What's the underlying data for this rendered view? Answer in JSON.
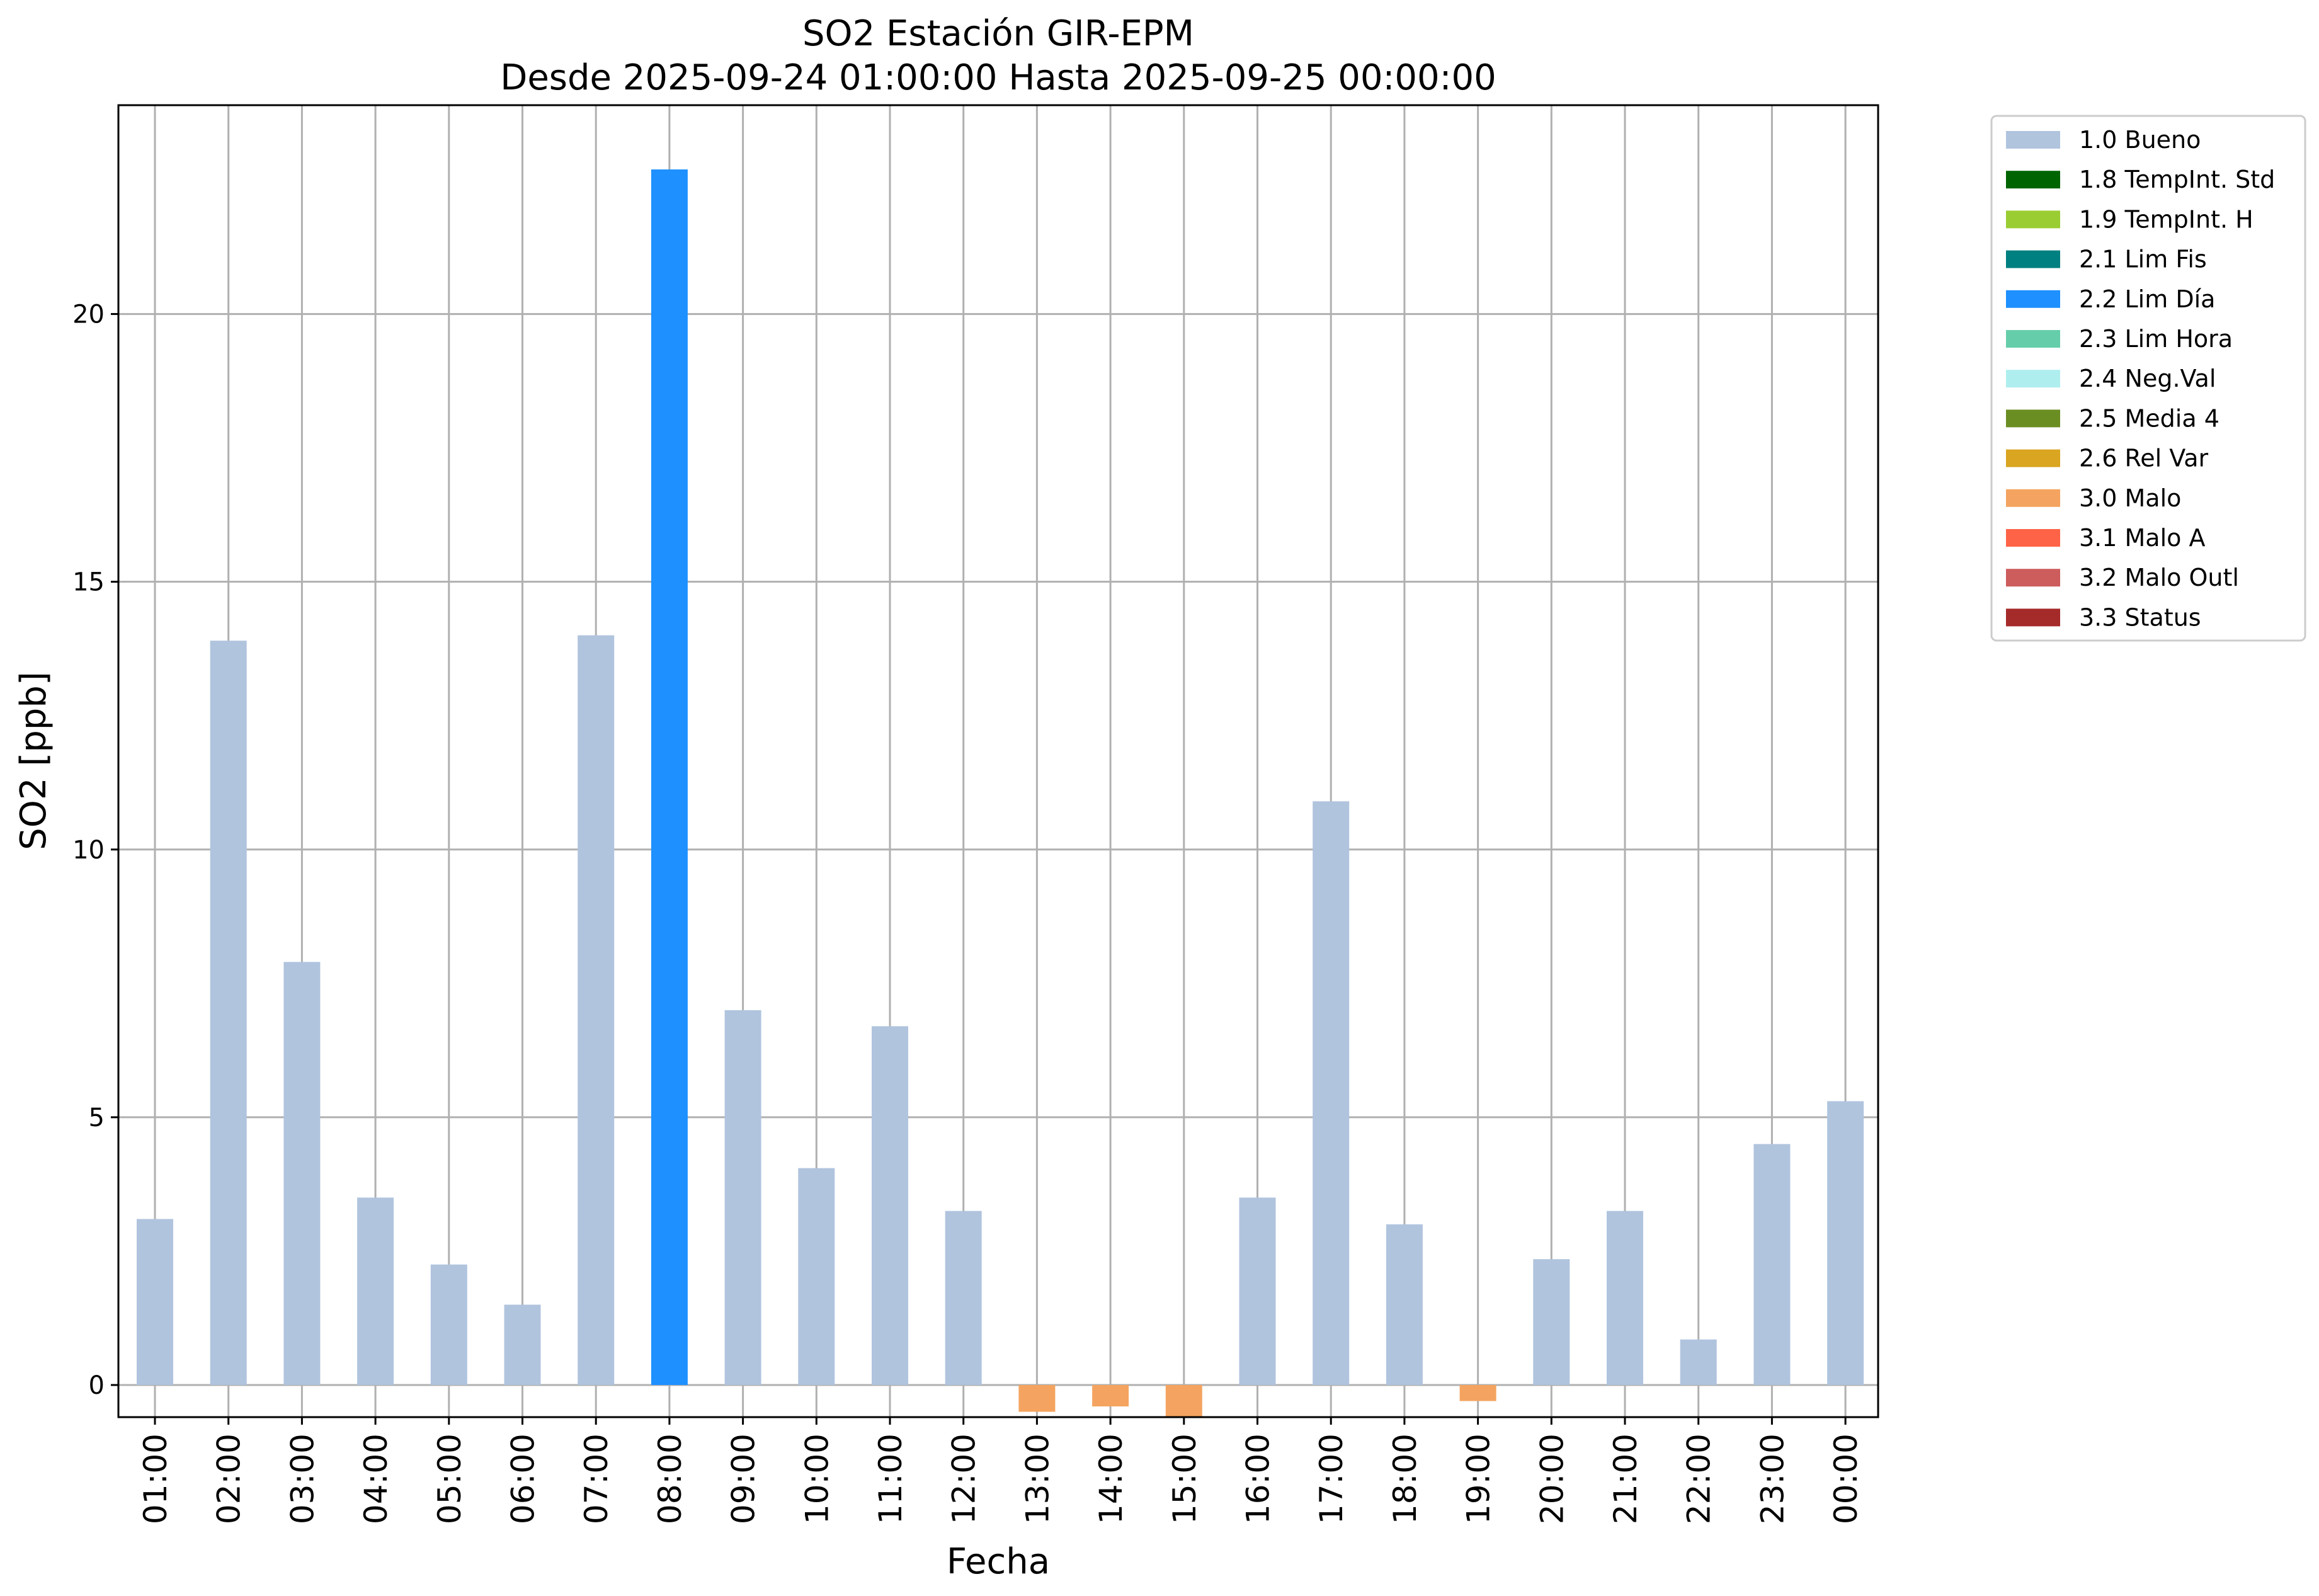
{
  "chart_data": {
    "type": "bar",
    "title": "SO2 Estación GIR-EPM",
    "subtitle": "Desde 2025-09-24 01:00:00 Hasta 2025-09-25 00:00:00",
    "xlabel": "Fecha",
    "ylabel": "SO2 [ppb]",
    "ylim": [
      -0.6,
      23.9
    ],
    "yticks": [
      0,
      5,
      10,
      15,
      20
    ],
    "grid": true,
    "legend_position": "outside-top-right",
    "categories": [
      "01:00",
      "02:00",
      "03:00",
      "04:00",
      "05:00",
      "06:00",
      "07:00",
      "08:00",
      "09:00",
      "10:00",
      "11:00",
      "12:00",
      "13:00",
      "14:00",
      "15:00",
      "16:00",
      "17:00",
      "18:00",
      "19:00",
      "20:00",
      "21:00",
      "22:00",
      "23:00",
      "00:00"
    ],
    "values": [
      3.1,
      13.9,
      7.9,
      3.5,
      2.25,
      1.5,
      14.0,
      22.7,
      7.0,
      4.05,
      6.7,
      3.25,
      -0.5,
      -0.4,
      -0.6,
      3.5,
      10.9,
      3.0,
      -0.3,
      2.35,
      3.25,
      0.85,
      4.5,
      5.3
    ],
    "flags": [
      "1.0 Bueno",
      "1.0 Bueno",
      "1.0 Bueno",
      "1.0 Bueno",
      "1.0 Bueno",
      "1.0 Bueno",
      "1.0 Bueno",
      "2.2 Lim Día",
      "1.0 Bueno",
      "1.0 Bueno",
      "1.0 Bueno",
      "1.0 Bueno",
      "3.0 Malo",
      "3.0 Malo",
      "3.0 Malo",
      "1.0 Bueno",
      "1.0 Bueno",
      "1.0 Bueno",
      "3.0 Malo",
      "1.0 Bueno",
      "1.0 Bueno",
      "1.0 Bueno",
      "1.0 Bueno",
      "1.0 Bueno"
    ],
    "legend": [
      {
        "label": "1.0 Bueno",
        "color": "#b0c4de"
      },
      {
        "label": "1.8 TempInt. Std",
        "color": "#006400"
      },
      {
        "label": "1.9 TempInt. H",
        "color": "#9acd32"
      },
      {
        "label": "2.1 Lim Fis",
        "color": "#008080"
      },
      {
        "label": "2.2 Lim Día",
        "color": "#1e90ff"
      },
      {
        "label": "2.3 Lim Hora",
        "color": "#66cdaa"
      },
      {
        "label": "2.4 Neg.Val",
        "color": "#afeeee"
      },
      {
        "label": "2.5 Media 4",
        "color": "#6b8e23"
      },
      {
        "label": "2.6 Rel Var",
        "color": "#daa520"
      },
      {
        "label": "3.0 Malo",
        "color": "#f4a460"
      },
      {
        "label": "3.1 Malo A",
        "color": "#ff6347"
      },
      {
        "label": "3.2 Malo Outl",
        "color": "#cd5c5c"
      },
      {
        "label": "3.3 Status",
        "color": "#a52a2a"
      }
    ]
  }
}
